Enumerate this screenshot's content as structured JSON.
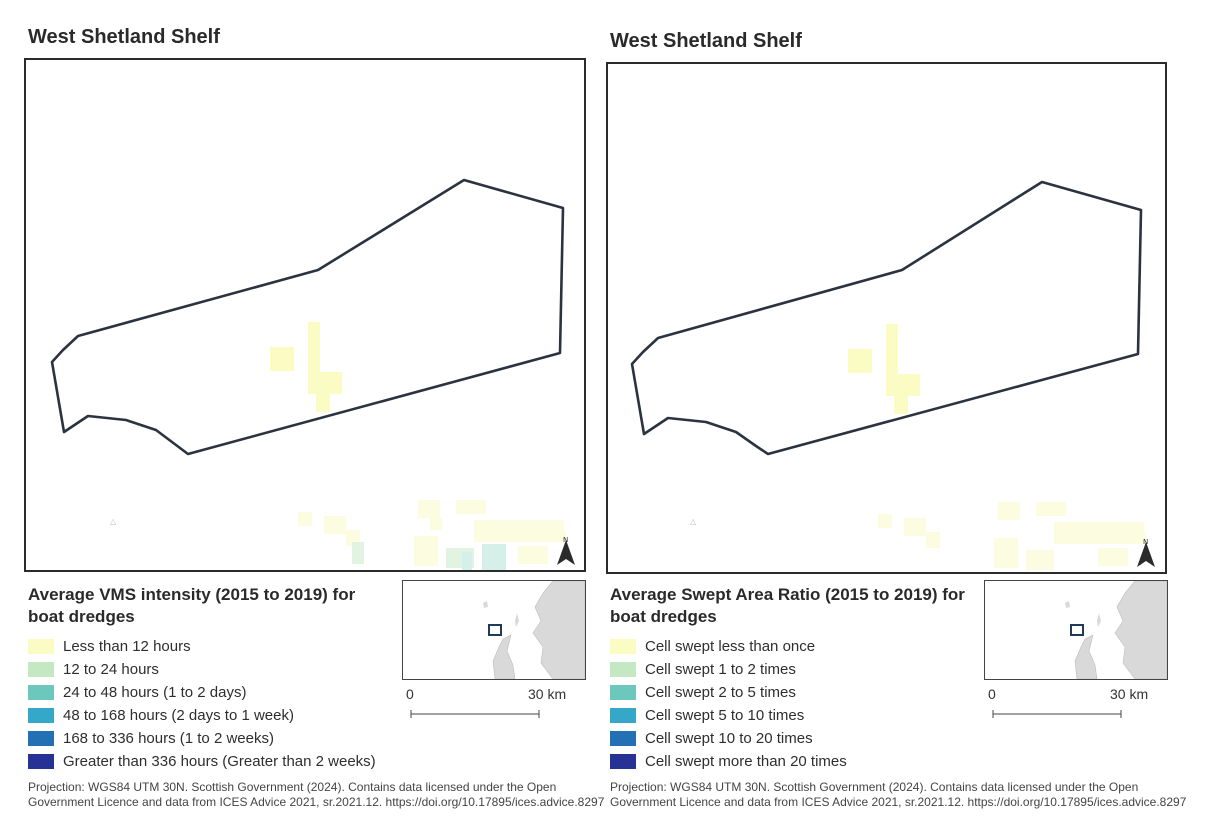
{
  "panels": [
    {
      "title": "West Shetland Shelf",
      "legend_title": "Average VMS intensity (2015 to 2019) for boat dredges",
      "legend": [
        {
          "label": "Less than 12 hours",
          "color": "#fbfbc4"
        },
        {
          "label": "12 to 24 hours",
          "color": "#c4e9c2"
        },
        {
          "label": "24 to 48 hours (1 to 2 days)",
          "color": "#6cc7bd"
        },
        {
          "label": "48 to 168 hours (2 days to 1 week)",
          "color": "#35a7c8"
        },
        {
          "label": "168 to 336 hours (1 to 2 weeks)",
          "color": "#2470b4"
        },
        {
          "label": "Greater than 336 hours (Greater than 2 weeks)",
          "color": "#263394"
        }
      ],
      "scale": {
        "zero": "0",
        "max": "30 km"
      },
      "north_label": "N",
      "credit": "Projection: WGS84 UTM 30N. Scottish Government (2024). Contains data licensed under the Open Government Licence and data from ICES Advice 2021, sr.2021.12. https://doi.org/10.17895/ices.advice.8297"
    },
    {
      "title": "West Shetland Shelf",
      "legend_title": "Average Swept Area Ratio (2015 to 2019) for boat dredges",
      "legend": [
        {
          "label": "Cell swept less than once",
          "color": "#fbfbc4"
        },
        {
          "label": "Cell swept 1 to 2 times",
          "color": "#c4e9c2"
        },
        {
          "label": "Cell swept 2 to 5 times",
          "color": "#6cc7bd"
        },
        {
          "label": "Cell swept 5 to 10 times",
          "color": "#35a7c8"
        },
        {
          "label": "Cell swept 10 to 20 times",
          "color": "#2470b4"
        },
        {
          "label": "Cell swept more than 20 times",
          "color": "#263394"
        }
      ],
      "scale": {
        "zero": "0",
        "max": "30 km"
      },
      "north_label": "N",
      "credit": "Projection: WGS84 UTM 30N. Scottish Government (2024). Contains data licensed under the Open Government Licence and data from ICES Advice 2021, sr.2021.12. https://doi.org/10.17895/ices.advice.8297"
    }
  ],
  "colors": {
    "boundary": "#2b3340",
    "land": "#d9d9d9",
    "inset_box": "#1f3b57"
  }
}
